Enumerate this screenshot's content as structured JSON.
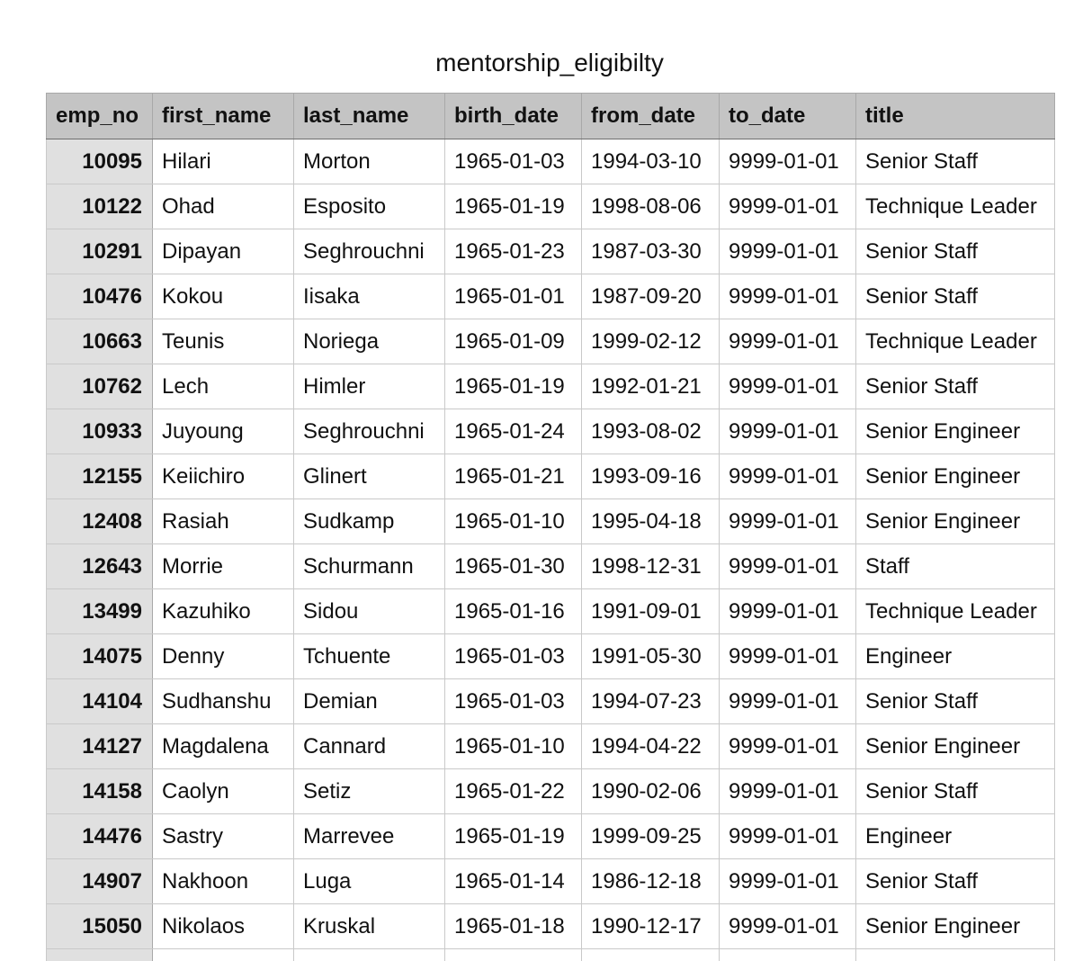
{
  "sheet": {
    "title": "mentorship_eligibilty"
  },
  "table": {
    "columns": [
      "emp_no",
      "first_name",
      "last_name",
      "birth_date",
      "from_date",
      "to_date",
      "title"
    ],
    "rows": [
      [
        "10095",
        "Hilari",
        "Morton",
        "1965-01-03",
        "1994-03-10",
        "9999-01-01",
        "Senior Staff"
      ],
      [
        "10122",
        "Ohad",
        "Esposito",
        "1965-01-19",
        "1998-08-06",
        "9999-01-01",
        "Technique Leader"
      ],
      [
        "10291",
        "Dipayan",
        "Seghrouchni",
        "1965-01-23",
        "1987-03-30",
        "9999-01-01",
        "Senior Staff"
      ],
      [
        "10476",
        "Kokou",
        "Iisaka",
        "1965-01-01",
        "1987-09-20",
        "9999-01-01",
        "Senior Staff"
      ],
      [
        "10663",
        "Teunis",
        "Noriega",
        "1965-01-09",
        "1999-02-12",
        "9999-01-01",
        "Technique Leader"
      ],
      [
        "10762",
        "Lech",
        "Himler",
        "1965-01-19",
        "1992-01-21",
        "9999-01-01",
        "Senior Staff"
      ],
      [
        "10933",
        "Juyoung",
        "Seghrouchni",
        "1965-01-24",
        "1993-08-02",
        "9999-01-01",
        "Senior Engineer"
      ],
      [
        "12155",
        "Keiichiro",
        "Glinert",
        "1965-01-21",
        "1993-09-16",
        "9999-01-01",
        "Senior Engineer"
      ],
      [
        "12408",
        "Rasiah",
        "Sudkamp",
        "1965-01-10",
        "1995-04-18",
        "9999-01-01",
        "Senior Engineer"
      ],
      [
        "12643",
        "Morrie",
        "Schurmann",
        "1965-01-30",
        "1998-12-31",
        "9999-01-01",
        "Staff"
      ],
      [
        "13499",
        "Kazuhiko",
        "Sidou",
        "1965-01-16",
        "1991-09-01",
        "9999-01-01",
        "Technique Leader"
      ],
      [
        "14075",
        "Denny",
        "Tchuente",
        "1965-01-03",
        "1991-05-30",
        "9999-01-01",
        "Engineer"
      ],
      [
        "14104",
        "Sudhanshu",
        "Demian",
        "1965-01-03",
        "1994-07-23",
        "9999-01-01",
        "Senior Staff"
      ],
      [
        "14127",
        "Magdalena",
        "Cannard",
        "1965-01-10",
        "1994-04-22",
        "9999-01-01",
        "Senior Engineer"
      ],
      [
        "14158",
        "Caolyn",
        "Setiz",
        "1965-01-22",
        "1990-02-06",
        "9999-01-01",
        "Senior Staff"
      ],
      [
        "14476",
        "Sastry",
        "Marrevee",
        "1965-01-19",
        "1999-09-25",
        "9999-01-01",
        "Engineer"
      ],
      [
        "14907",
        "Nakhoon",
        "Luga",
        "1965-01-14",
        "1986-12-18",
        "9999-01-01",
        "Senior Staff"
      ],
      [
        "15050",
        "Nikolaos",
        "Kruskal",
        "1965-01-18",
        "1990-12-17",
        "9999-01-01",
        "Senior Engineer"
      ],
      [
        "",
        "",
        "",
        "",
        "",
        "",
        ""
      ]
    ]
  },
  "colors": {
    "header_bg": "#c4c4c4",
    "key_column_bg": "#e0e0e0",
    "grid_line": "#c9c9c9"
  }
}
